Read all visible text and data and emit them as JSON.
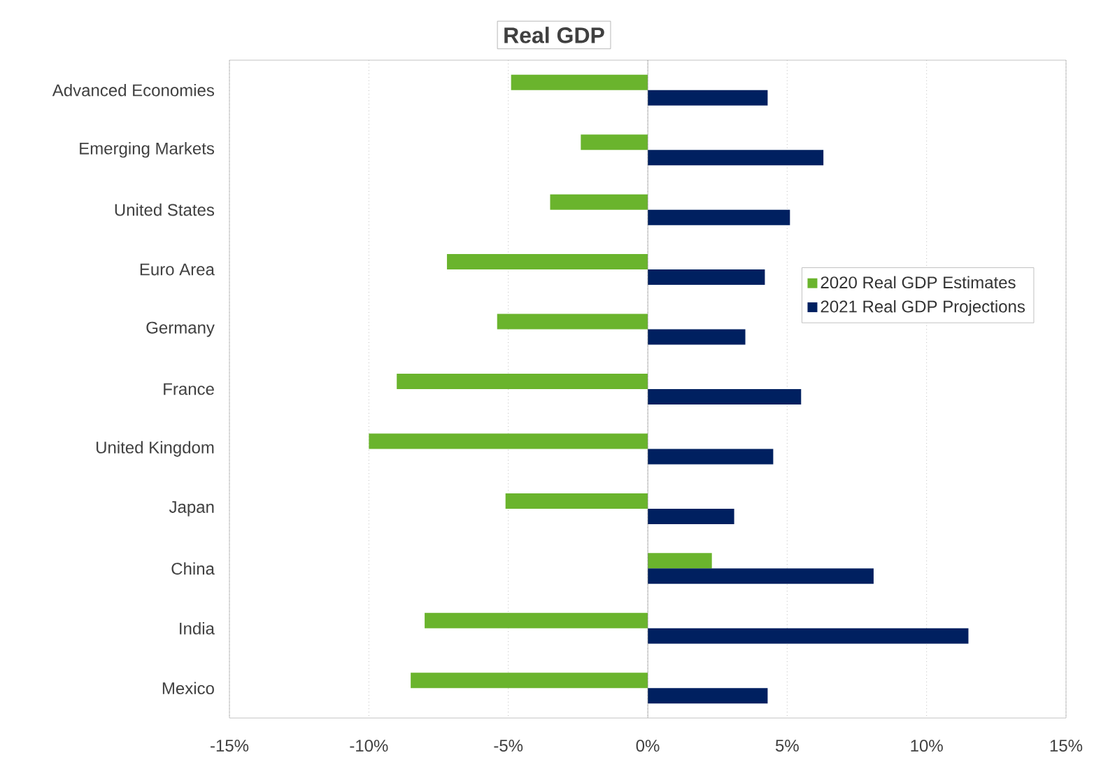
{
  "chart_data": {
    "type": "bar",
    "orientation": "horizontal",
    "title": "Real GDP",
    "categories": [
      "Advanced Economies",
      "Emerging Markets",
      "United States",
      "Euro Area",
      "Germany",
      "France",
      "United Kingdom",
      "Japan",
      "China",
      "India",
      "Mexico"
    ],
    "series": [
      {
        "name": "2020 Real GDP Estimates",
        "color": "#6ab42d",
        "values": [
          -4.9,
          -2.4,
          -3.5,
          -7.2,
          -5.4,
          -9.0,
          -10.0,
          -5.1,
          2.3,
          -8.0,
          -8.5
        ]
      },
      {
        "name": "2021 Real GDP Projections",
        "color": "#002060",
        "values": [
          4.3,
          6.3,
          5.1,
          4.2,
          3.5,
          5.5,
          4.5,
          3.1,
          8.1,
          11.5,
          4.3
        ]
      }
    ],
    "xlim": [
      -15,
      15
    ],
    "xticks": [
      {
        "value": -15,
        "label": "-15%"
      },
      {
        "value": -10,
        "label": "-10%"
      },
      {
        "value": -5,
        "label": "-5%"
      },
      {
        "value": 0,
        "label": "0%"
      },
      {
        "value": 5,
        "label": "5%"
      },
      {
        "value": 10,
        "label": "10%"
      },
      {
        "value": 15,
        "label": "15%"
      }
    ],
    "grid": "x",
    "legend": "right"
  }
}
